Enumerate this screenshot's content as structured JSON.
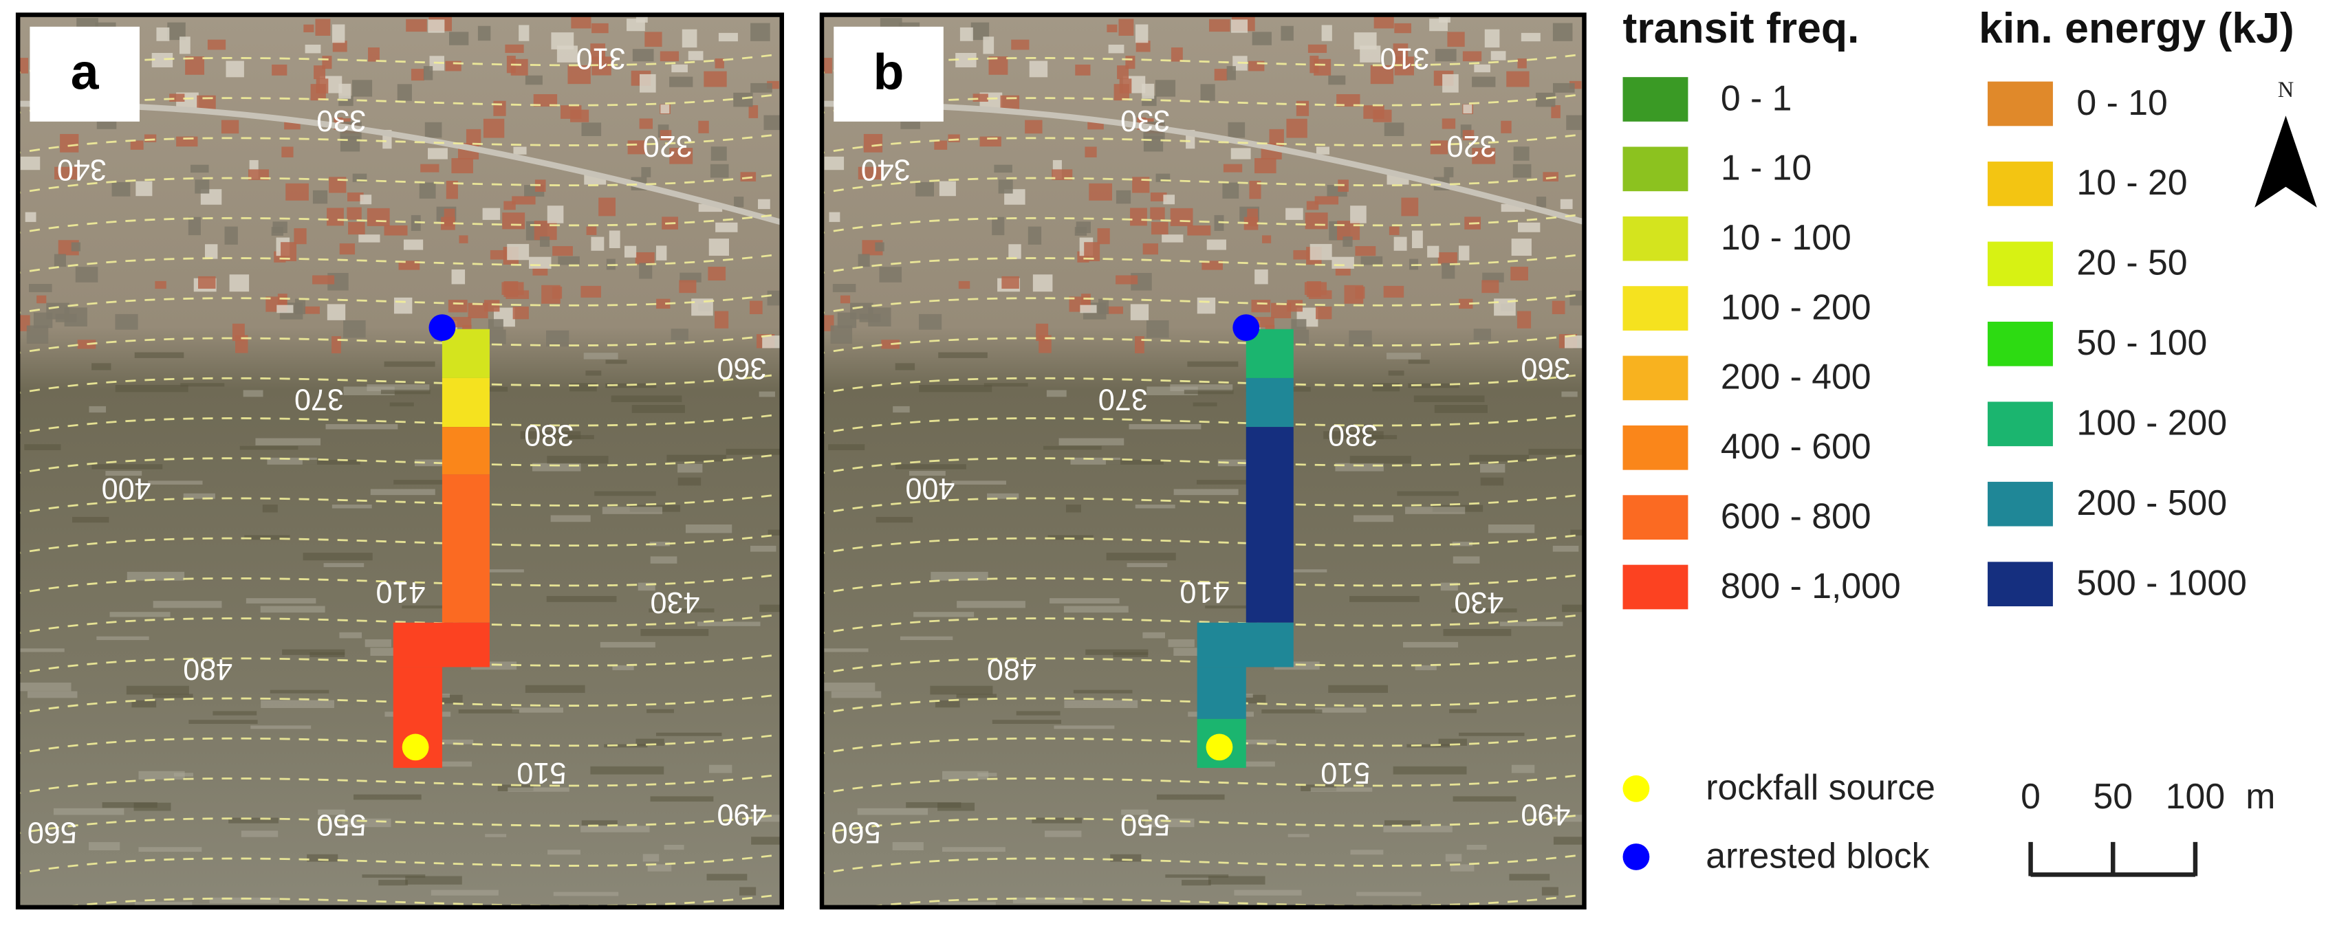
{
  "panels": [
    {
      "label": "a"
    },
    {
      "label": "b"
    }
  ],
  "contour_labels": [
    310,
    320,
    330,
    340,
    360,
    370,
    380,
    400,
    410,
    430,
    480,
    490,
    510,
    550,
    560
  ],
  "legend_transit": {
    "title": "transit freq.",
    "classes": [
      {
        "label": "0 - 1",
        "color": "#3a9a25"
      },
      {
        "label": "1 - 10",
        "color": "#8cc21f"
      },
      {
        "label": "10 - 100",
        "color": "#d4e41e"
      },
      {
        "label": "100 - 200",
        "color": "#f5e21f"
      },
      {
        "label": "200 - 400",
        "color": "#f8b21f"
      },
      {
        "label": "400 - 600",
        "color": "#fa861a"
      },
      {
        "label": "600 - 800",
        "color": "#fb6a22"
      },
      {
        "label": "800 - 1,000",
        "color": "#fc4221"
      }
    ]
  },
  "legend_energy": {
    "title": "kin. energy (kJ)",
    "classes": [
      {
        "label": "0 - 10",
        "color": "#e0892a"
      },
      {
        "label": "10 - 20",
        "color": "#f3c512"
      },
      {
        "label": "20 - 50",
        "color": "#d7f213"
      },
      {
        "label": "50 - 100",
        "color": "#2ddb12"
      },
      {
        "label": "100 - 200",
        "color": "#1bb56f"
      },
      {
        "label": "200 - 500",
        "color": "#1f8797"
      },
      {
        "label": "500 - 1000",
        "color": "#152f7f"
      }
    ]
  },
  "points": [
    {
      "label": "rockfall source",
      "color": "#ffff00"
    },
    {
      "label": "arrested block",
      "color": "#0000ff"
    }
  ],
  "scale_bar": {
    "ticks": [
      0,
      50,
      100
    ],
    "unit": "m"
  },
  "north": "N"
}
